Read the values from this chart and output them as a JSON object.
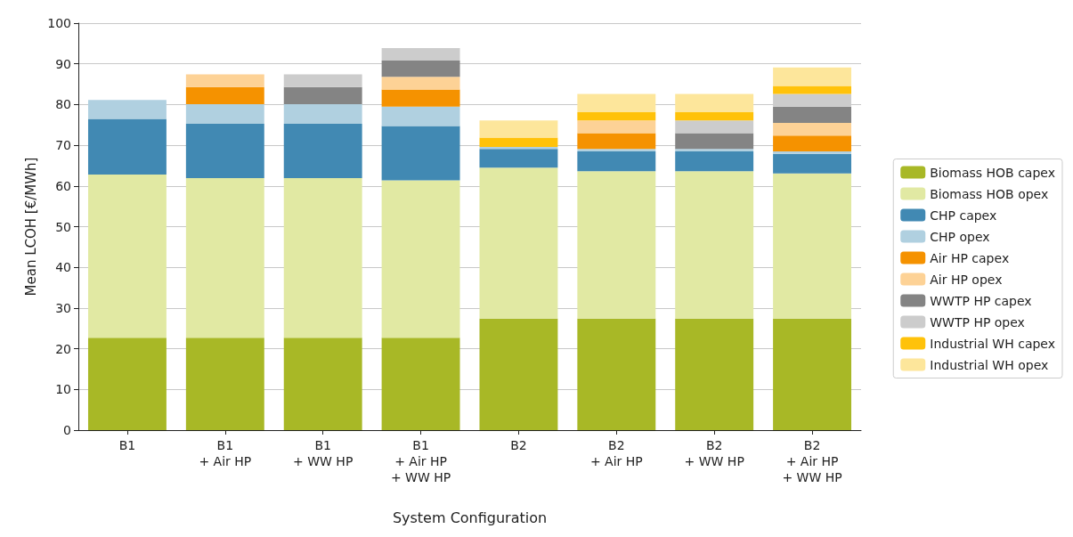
{
  "chart_data": {
    "type": "bar",
    "stacked": true,
    "xlabel": "System Configuration",
    "ylabel": "Mean LCOH [€/MWh]",
    "categories": [
      "B1",
      "B1\n+ Air HP",
      "B1\n+ WW HP",
      "B1\n+ Air HP\n+ WW HP",
      "B2",
      "B2\n+ Air HP",
      "B2\n+ WW HP",
      "B2\n+ Air HP\n+ WW HP"
    ],
    "ylim": [
      0,
      100
    ],
    "yticks": [
      0,
      10,
      20,
      30,
      40,
      50,
      60,
      70,
      80,
      90,
      100
    ],
    "grid": "y",
    "legend": "right",
    "series": [
      {
        "name": "Biomass HOB capex",
        "color": "#a8b826",
        "values": [
          22.7,
          22.7,
          22.7,
          22.7,
          27.4,
          27.4,
          27.4,
          27.4
        ]
      },
      {
        "name": "Biomass HOB opex",
        "color": "#e1e9a3",
        "values": [
          40.1,
          39.2,
          39.2,
          38.7,
          37.1,
          36.2,
          36.2,
          35.7
        ]
      },
      {
        "name": "CHP capex",
        "color": "#4189b3",
        "values": [
          13.7,
          13.4,
          13.4,
          13.3,
          4.6,
          4.9,
          4.9,
          4.8
        ]
      },
      {
        "name": "CHP opex",
        "color": "#b0d0e0",
        "values": [
          4.6,
          4.8,
          4.8,
          4.8,
          0.5,
          0.6,
          0.6,
          0.6
        ]
      },
      {
        "name": "Air HP capex",
        "color": "#f59200",
        "values": [
          null,
          4.2,
          null,
          4.2,
          null,
          3.9,
          null,
          3.9
        ]
      },
      {
        "name": "Air HP opex",
        "color": "#fdd296",
        "values": [
          null,
          3.1,
          null,
          3.1,
          null,
          3.1,
          null,
          3.1
        ]
      },
      {
        "name": "WWTP HP capex",
        "color": "#848484",
        "values": [
          null,
          null,
          4.2,
          4.0,
          null,
          null,
          3.9,
          4.0
        ]
      },
      {
        "name": "WWTP HP opex",
        "color": "#cccccc",
        "values": [
          null,
          null,
          3.1,
          3.1,
          null,
          null,
          3.1,
          3.1
        ]
      },
      {
        "name": "Industrial WH capex",
        "color": "#ffc20a",
        "values": [
          null,
          null,
          null,
          null,
          2.3,
          2.0,
          2.0,
          2.0
        ]
      },
      {
        "name": "Industrial WH opex",
        "color": "#fde69b",
        "values": [
          null,
          null,
          null,
          null,
          4.2,
          4.5,
          4.5,
          4.5
        ]
      }
    ]
  }
}
